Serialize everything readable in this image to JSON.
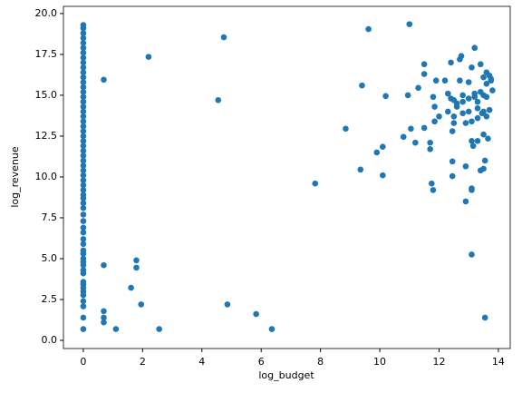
{
  "chart_data": {
    "type": "scatter",
    "x_label": "log_budget",
    "y_label": "log_revenue",
    "color": "#1f77b4",
    "x": [
      0,
      0,
      0,
      0,
      0,
      0,
      0,
      0,
      0,
      0,
      0,
      0,
      0,
      0,
      0,
      0,
      0,
      0,
      0,
      0,
      0,
      0,
      0,
      0,
      0,
      0,
      0,
      0,
      0,
      0,
      0,
      0,
      0,
      0,
      0,
      0,
      0,
      0,
      0,
      0,
      0,
      0,
      0,
      0,
      0,
      0,
      0,
      0,
      0,
      0,
      0,
      0,
      0,
      0,
      0,
      0,
      0,
      0,
      0,
      0,
      0,
      0.69,
      0.69,
      0.69,
      0.69,
      0.69,
      1.1,
      1.61,
      1.79,
      1.79,
      1.95,
      2.2,
      2.56,
      4.55,
      4.74,
      4.86,
      5.83,
      6.36,
      7.82,
      8.85,
      9.35,
      9.4,
      9.62,
      9.9,
      10.1,
      10.1,
      10.2,
      10.8,
      10.95,
      11.0,
      11.05,
      11.2,
      11.3,
      11.5,
      11.5,
      11.5,
      11.7,
      11.7,
      11.75,
      11.8,
      11.8,
      11.85,
      11.85,
      11.9,
      12.0,
      12.2,
      12.3,
      12.4,
      12.4,
      12.45,
      12.5,
      12.5,
      12.5,
      12.45,
      12.45,
      12.6,
      12.6,
      12.7,
      12.75,
      12.8,
      12.7,
      12.8,
      12.8,
      12.9,
      12.9,
      13.0,
      13.0,
      13.1,
      13.1,
      13.1,
      13.15,
      13.1,
      13.1,
      13.1,
      13.2,
      13.2,
      13.3,
      13.3,
      13.3,
      13.4,
      13.4,
      13.4,
      13.5,
      13.5,
      13.5,
      13.5,
      13.5,
      13.55,
      13.6,
      13.6,
      13.6,
      13.65,
      13.55,
      13.7,
      13.75,
      13.8,
      13.7,
      13.75,
      13.2,
      13.0,
      12.9,
      12.3,
      13.3,
      13.6,
      13.45
    ],
    "y": [
      0.69,
      1.39,
      2.08,
      2.4,
      2.77,
      3.0,
      3.22,
      3.43,
      3.58,
      4.1,
      4.3,
      4.6,
      4.8,
      5.0,
      5.3,
      5.5,
      5.9,
      6.2,
      6.6,
      6.9,
      7.3,
      7.7,
      8.1,
      8.4,
      8.7,
      8.9,
      9.2,
      9.5,
      9.8,
      10.1,
      10.4,
      10.7,
      11.0,
      11.3,
      11.6,
      11.9,
      12.2,
      12.5,
      12.8,
      13.1,
      13.4,
      13.7,
      14.0,
      14.3,
      14.6,
      14.9,
      15.2,
      15.5,
      15.8,
      16.1,
      16.4,
      16.7,
      17.0,
      17.3,
      17.6,
      17.9,
      18.2,
      18.5,
      18.8,
      19.1,
      19.3,
      15.95,
      4.6,
      1.79,
      1.39,
      1.1,
      0.69,
      3.22,
      4.9,
      4.45,
      2.2,
      17.35,
      0.69,
      14.7,
      18.55,
      2.2,
      1.61,
      0.69,
      9.6,
      12.95,
      10.45,
      15.6,
      19.05,
      11.5,
      11.85,
      10.1,
      14.95,
      12.45,
      15.0,
      19.35,
      12.95,
      12.1,
      15.45,
      16.9,
      16.3,
      13.0,
      12.1,
      11.7,
      9.6,
      9.2,
      14.9,
      14.3,
      13.4,
      15.9,
      13.7,
      15.9,
      15.1,
      14.8,
      17.0,
      12.8,
      14.7,
      13.7,
      13.3,
      10.95,
      10.05,
      14.5,
      14.3,
      17.2,
      17.4,
      15.0,
      15.9,
      14.6,
      13.9,
      10.65,
      8.5,
      15.8,
      14.8,
      16.7,
      13.4,
      12.2,
      11.9,
      9.3,
      9.2,
      5.25,
      17.9,
      14.9,
      14.2,
      13.6,
      12.2,
      16.9,
      15.2,
      10.4,
      16.1,
      15.0,
      14.0,
      12.6,
      10.5,
      11.0,
      16.4,
      15.7,
      13.7,
      12.35,
      1.39,
      16.2,
      15.9,
      15.3,
      14.1,
      16.0,
      15.1,
      14.0,
      13.3,
      14.0,
      14.6,
      14.9,
      13.9
    ],
    "xlim": [
      -0.67,
      14.4
    ],
    "ylim": [
      -0.5,
      20.44
    ],
    "xticks": [
      0,
      2,
      4,
      6,
      8,
      10,
      12,
      14
    ],
    "yticks": [
      {
        "value": 0,
        "label": "0.0"
      },
      2.5,
      {
        "value": 5,
        "label": "5.0"
      },
      7.5,
      {
        "value": 10,
        "label": "10.0"
      },
      12.5,
      {
        "value": 15,
        "label": "15.0"
      },
      17.5,
      {
        "value": 20,
        "label": "20.0"
      }
    ]
  }
}
